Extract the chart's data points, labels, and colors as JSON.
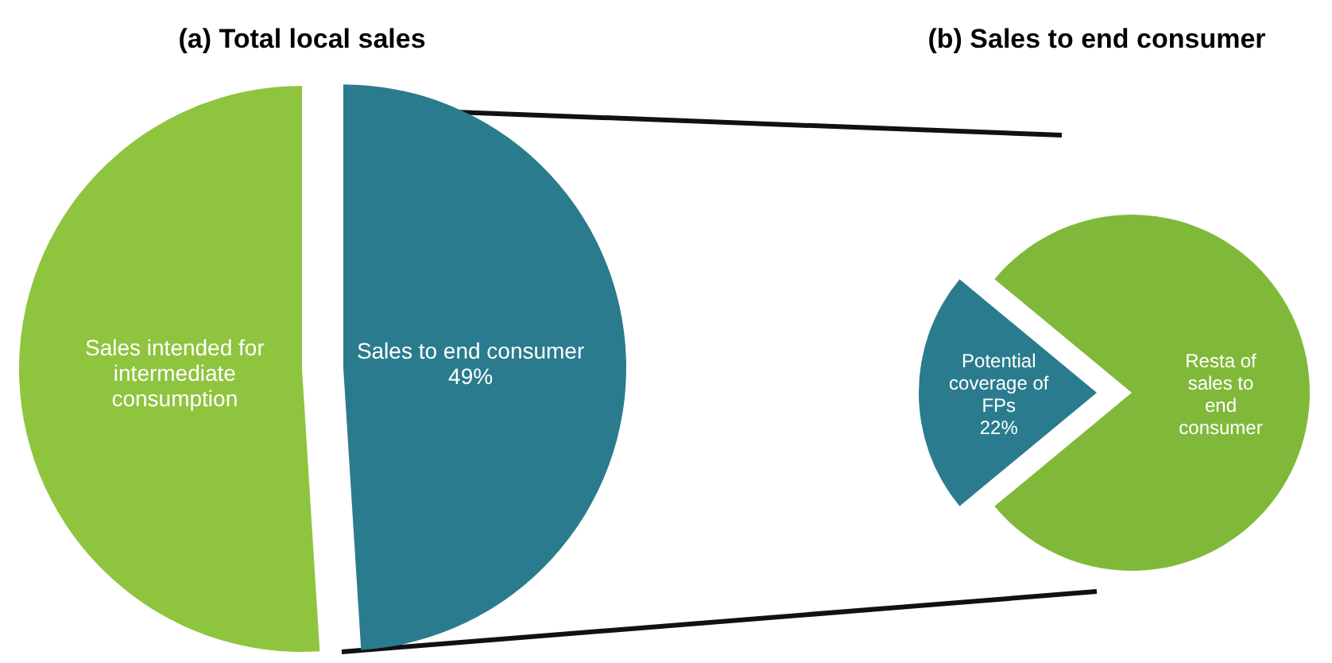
{
  "chart_data": [
    {
      "type": "pie",
      "title": "(a)  Total local sales",
      "categories": [
        "Sales intended for intermediate consumption",
        "Sales to end consumer"
      ],
      "values": [
        51,
        49
      ],
      "colors": [
        "#8fc43f",
        "#2b7b8e"
      ],
      "value_labels": [
        null,
        "49%"
      ]
    },
    {
      "type": "pie",
      "title": "(b)  Sales to end consumer",
      "categories": [
        "Potential coverage of FPs",
        "Resta of sales to end consumer"
      ],
      "values": [
        22,
        78
      ],
      "colors": [
        "#2b7b8e",
        "#80b93a"
      ],
      "value_labels": [
        "22%",
        null
      ]
    }
  ]
}
